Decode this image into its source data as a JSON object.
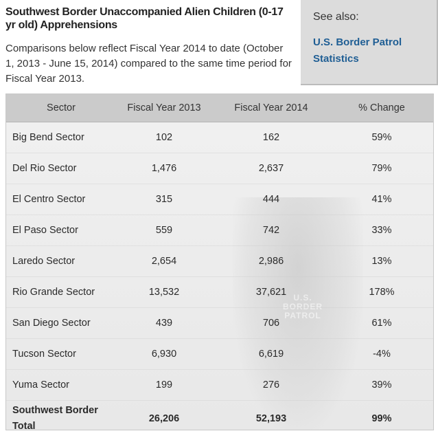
{
  "title": "Southwest Border Unaccompanied Alien Children (0-17 yr old) Apprehensions",
  "intro": "Comparisons below reflect Fiscal Year 2014 to date (October 1, 2013 - June 15, 2014) compared to the same time period for Fiscal Year 2013.",
  "see_also": {
    "heading": "See also:",
    "link": "U.S. Border Patrol Statistics"
  },
  "table": {
    "headers": [
      "Sector",
      "Fiscal Year 2013",
      "Fiscal Year 2014",
      "% Change"
    ],
    "rows": [
      [
        "Big Bend Sector",
        "102",
        "162",
        "59%"
      ],
      [
        "Del Rio Sector",
        "1,476",
        "2,637",
        "79%"
      ],
      [
        "El Centro Sector",
        "315",
        "444",
        "41%"
      ],
      [
        "El Paso Sector",
        "559",
        "742",
        "33%"
      ],
      [
        "Laredo Sector",
        "2,654",
        "2,986",
        "13%"
      ],
      [
        "Rio Grande Sector",
        "13,532",
        "37,621",
        "178%"
      ],
      [
        "San Diego Sector",
        "439",
        "706",
        "61%"
      ],
      [
        "Tucson Sector",
        "6,930",
        "6,619",
        "-4%"
      ],
      [
        "Yuma Sector",
        "199",
        "276",
        "39%"
      ]
    ],
    "total": [
      "Southwest Border Total",
      "26,206",
      "52,193",
      "99%"
    ]
  },
  "background_image_text": "U.S. BORDER PATROL",
  "colors": {
    "header_bg": "#cbcbcb",
    "see_also_bg": "#dcdcdc",
    "link": "#1f5e94"
  }
}
